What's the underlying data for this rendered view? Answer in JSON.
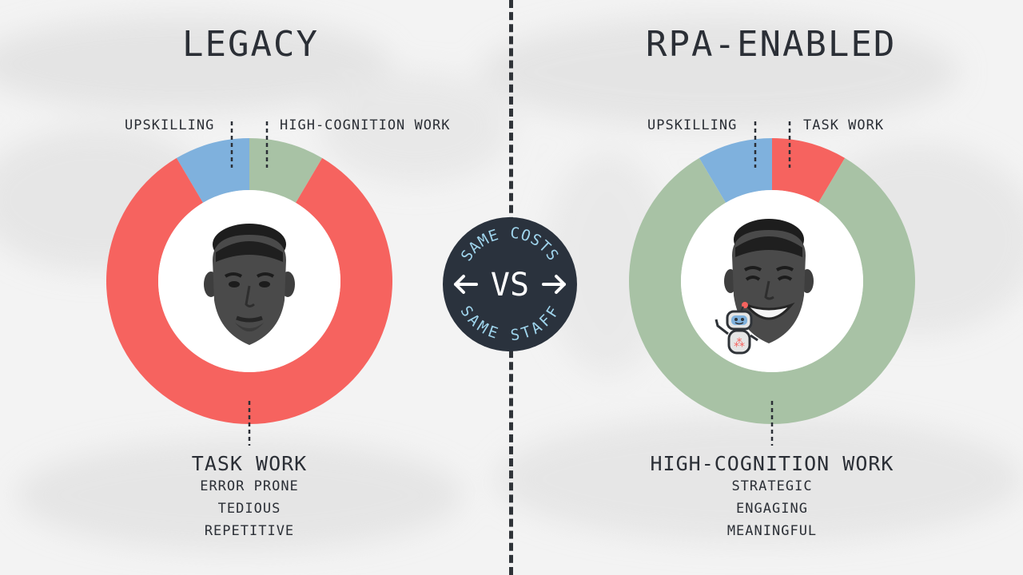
{
  "left": {
    "title": "LEGACY",
    "labels": {
      "upskilling": "UPSKILLING",
      "secondary": "HIGH-COGNITION WORK"
    },
    "bottom": {
      "title": "TASK WORK",
      "items": [
        "ERROR PRONE",
        "TEDIOUS",
        "REPETITIVE"
      ]
    }
  },
  "right": {
    "title": "RPA-ENABLED",
    "labels": {
      "upskilling": "UPSKILLING",
      "secondary": "TASK WORK"
    },
    "bottom": {
      "title": "HIGH-COGNITION WORK",
      "items": [
        "STRATEGIC",
        "ENGAGING",
        "MEANINGFUL"
      ]
    }
  },
  "badge": {
    "top_text": "SAME COSTS",
    "center_text": "VS",
    "bottom_text": "SAME STAFF"
  },
  "chart_data": [
    {
      "type": "pie",
      "categories": [
        "UPSKILLING",
        "HIGH-COGNITION WORK",
        "TASK WORK"
      ],
      "values": [
        8.5,
        8.5,
        83
      ],
      "colors": [
        "#7fb1dd",
        "#a8c2a5",
        "#f6635f"
      ]
    },
    {
      "type": "pie",
      "categories": [
        "UPSKILLING",
        "TASK WORK",
        "HIGH-COGNITION WORK"
      ],
      "values": [
        8.5,
        8.5,
        83
      ],
      "colors": [
        "#7fb1dd",
        "#f6635f",
        "#a8c2a5"
      ]
    }
  ],
  "icons": {
    "left_face": "man-neutral-face-icon",
    "right_face": "man-smiling-face-icon",
    "robot": "robot-icon"
  }
}
